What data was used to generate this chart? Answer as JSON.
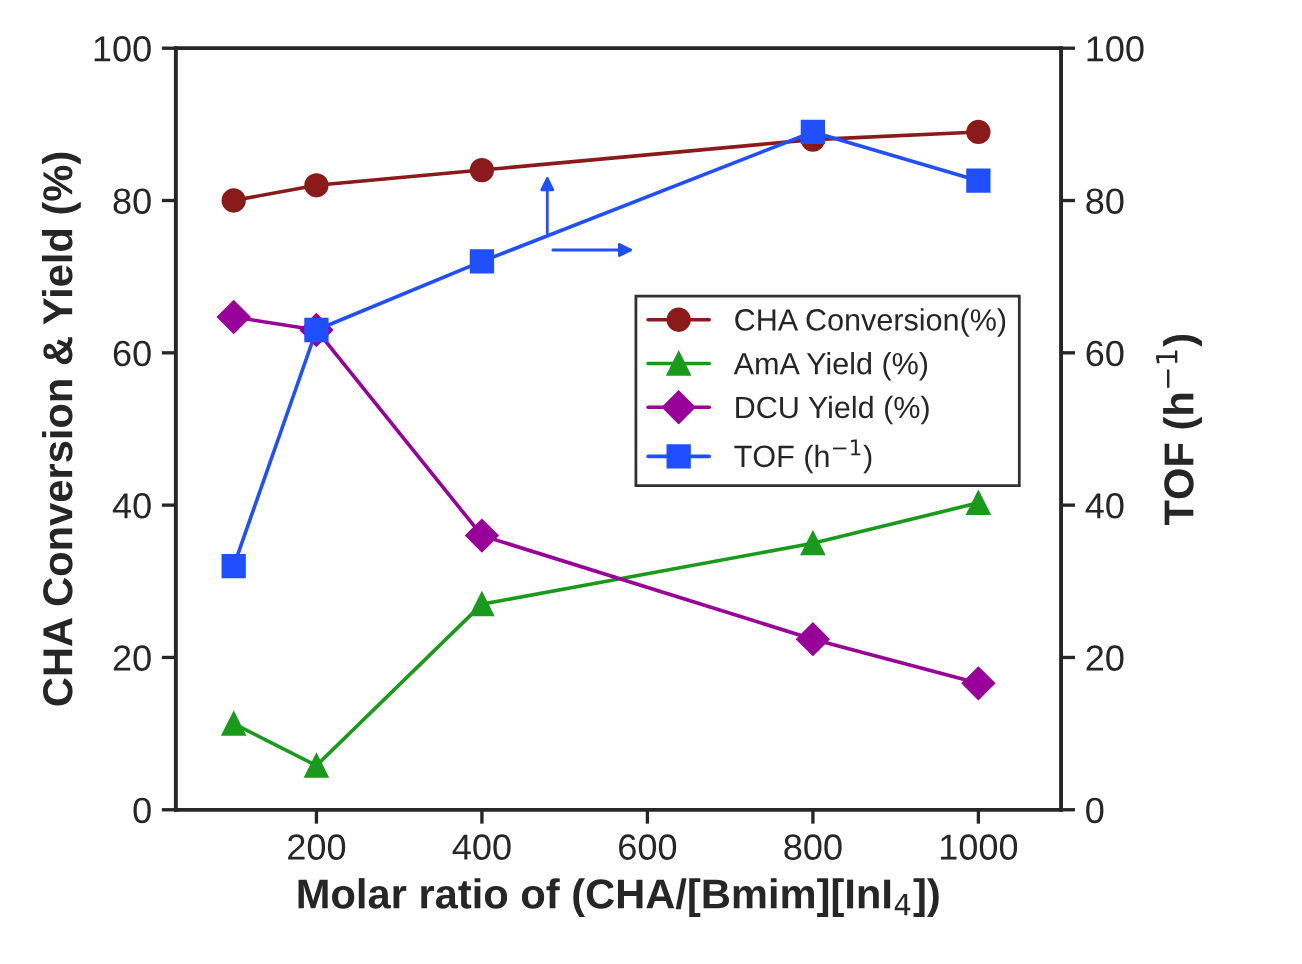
{
  "chart_data": {
    "type": "line",
    "xlabel": "Molar ratio of (CHA/[Bmim][InI$_{4}$])",
    "ylabel": "CHA Conversion & Yield (%)",
    "y2label": "TOF (h$^{−1}$)",
    "x": [
      100,
      200,
      400,
      800,
      1000
    ],
    "xlim": [
      30,
      1100
    ],
    "xticks": [
      200,
      400,
      600,
      800,
      1000
    ],
    "ylim": [
      0,
      100
    ],
    "yticks": [
      0,
      20,
      40,
      60,
      80,
      100
    ],
    "y2lim": [
      0,
      100
    ],
    "y2ticks": [
      0,
      20,
      40,
      60,
      80,
      100
    ],
    "series": [
      {
        "name": "CHA Conversion(%)",
        "color": "#8b1a1a",
        "marker": "circle",
        "values": [
          80,
          82,
          84,
          88,
          89
        ]
      },
      {
        "name": "AmA Yield (%)",
        "color": "#1a9a1a",
        "marker": "triangle",
        "values": [
          11.3,
          5.8,
          27,
          35,
          40.3
        ]
      },
      {
        "name": "DCU Yield (%)",
        "color": "#990099",
        "marker": "diamond",
        "values": [
          64.7,
          63,
          36,
          22.4,
          16.6
        ]
      },
      {
        "name": "TOF (h$^{−1}$)",
        "color": "#1f4fff",
        "marker": "square",
        "axis": "y2",
        "values": [
          32,
          63,
          72,
          89,
          82.6
        ]
      }
    ],
    "legend": "center right",
    "grid": false
  }
}
